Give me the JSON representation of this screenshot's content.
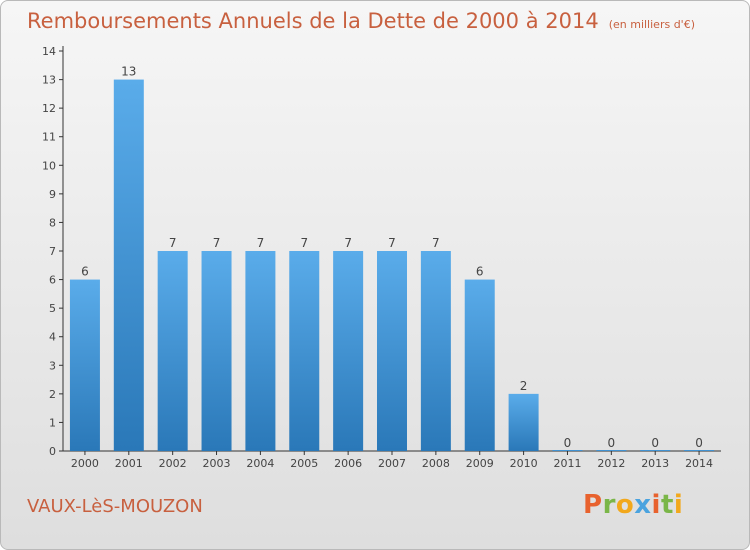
{
  "title": "Remboursements Annuels de la Dette de 2000 à 2014",
  "subtitle": "(en milliers d'€)",
  "commune": "VAUX-LèS-MOUZON",
  "logo_letters": [
    "P",
    "r",
    "o",
    "x",
    "i",
    "t",
    "i"
  ],
  "colors": {
    "title": "#c8603f",
    "bar_top": "#5aacea",
    "bar_bottom": "#2a78b8"
  },
  "chart_data": {
    "type": "bar",
    "categories": [
      "2000",
      "2001",
      "2002",
      "2003",
      "2004",
      "2005",
      "2006",
      "2007",
      "2008",
      "2009",
      "2010",
      "2011",
      "2012",
      "2013",
      "2014"
    ],
    "values": [
      6,
      13,
      7,
      7,
      7,
      7,
      7,
      7,
      7,
      6,
      2,
      0,
      0,
      0,
      0
    ],
    "yticks": [
      0,
      1,
      2,
      3,
      4,
      5,
      6,
      7,
      8,
      9,
      10,
      11,
      12,
      13,
      14
    ],
    "ylim": [
      0,
      14
    ],
    "title": "Remboursements Annuels de la Dette de 2000 à 2014",
    "xlabel": "",
    "ylabel": "",
    "grid": false,
    "data_labels": true
  }
}
